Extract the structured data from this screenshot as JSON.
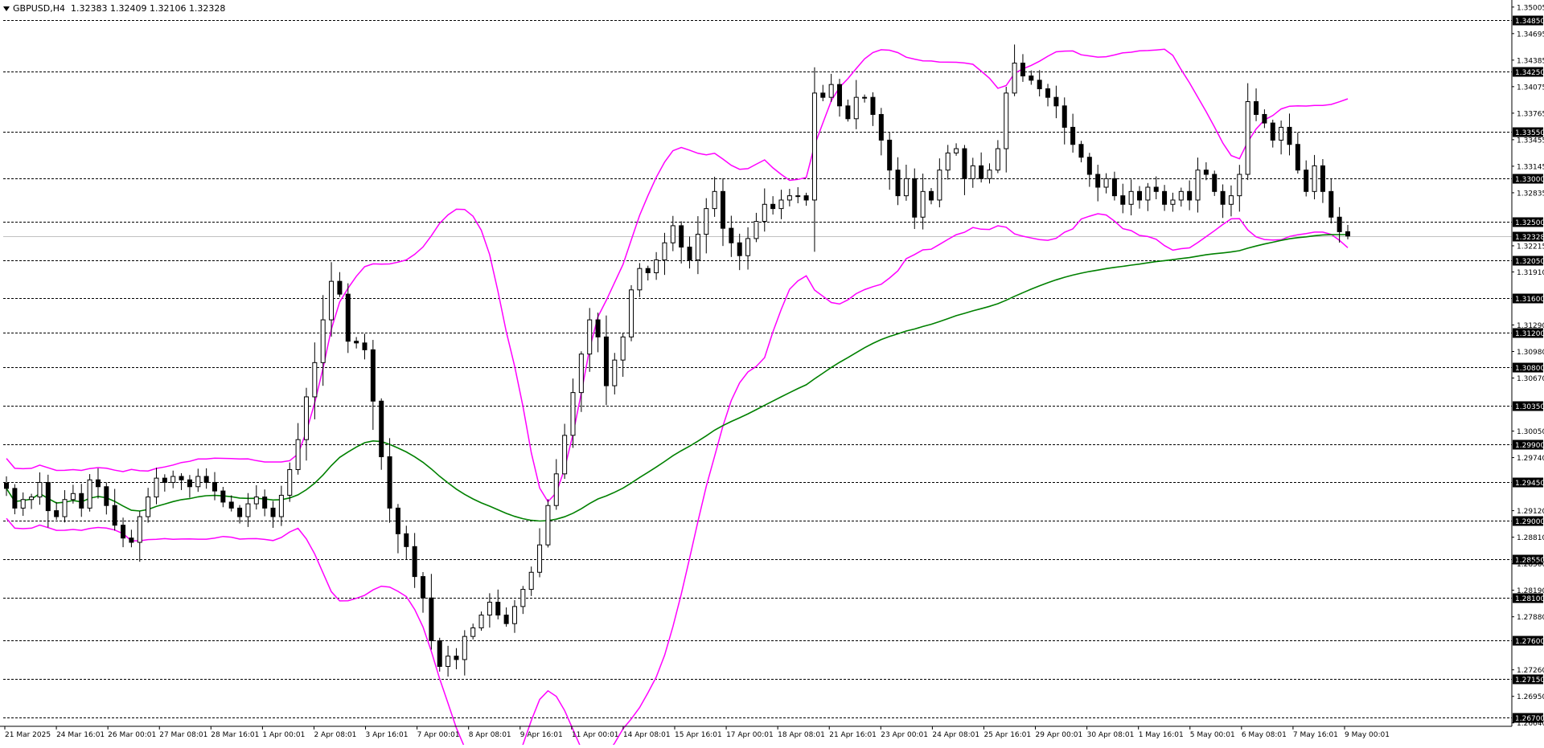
{
  "header": {
    "symbol": "GBPUSD,H4",
    "ohlc": "1.32383 1.32409 1.32106 1.32328"
  },
  "colors": {
    "background": "#ffffff",
    "candle": "#000000",
    "bollinger": "#ff00ff",
    "moving_average": "#008000",
    "grid": "#000000"
  },
  "chart_data": {
    "type": "candlestick",
    "symbol": "GBPUSD",
    "timeframe": "H4",
    "ylim": [
      1.266,
      1.3505
    ],
    "grid": "horizontal dashed at level lines",
    "price_axis_ticks": [
      "1.35005",
      "1.34695",
      "1.34385",
      "1.34075",
      "1.33765",
      "1.33455",
      "1.33145",
      "1.32835",
      "1.32215",
      "1.31910",
      "1.31290",
      "1.30980",
      "1.30670",
      "1.30050",
      "1.29740",
      "1.29120",
      "1.28810",
      "1.28500",
      "1.28190",
      "1.27880",
      "1.27260",
      "1.26950",
      "1.26640"
    ],
    "level_lines": [
      "1.34850",
      "1.34250",
      "1.33550",
      "1.33000",
      "1.32500",
      "1.32050",
      "1.31600",
      "1.31200",
      "1.30800",
      "1.30350",
      "1.29900",
      "1.29450",
      "1.29000",
      "1.28550",
      "1.28100",
      "1.27600",
      "1.27150",
      "1.26700"
    ],
    "current_price": "1.32328",
    "time_labels": [
      "21 Mar 2025",
      "24 Mar 16:01",
      "26 Mar 00:01",
      "27 Mar 08:01",
      "28 Mar 16:01",
      "1 Apr 00:01",
      "2 Apr 08:01",
      "3 Apr 16:01",
      "7 Apr 00:01",
      "8 Apr 08:01",
      "9 Apr 16:01",
      "11 Apr 00:01",
      "14 Apr 08:01",
      "15 Apr 16:01",
      "17 Apr 00:01",
      "18 Apr 08:01",
      "21 Apr 16:01",
      "23 Apr 00:01",
      "24 Apr 08:01",
      "25 Apr 16:01",
      "29 Apr 00:01",
      "30 Apr 08:01",
      "1 May 16:01",
      "5 May 00:01",
      "6 May 08:01",
      "7 May 16:01",
      "9 May 00:01"
    ],
    "close_path": [
      1.2938,
      1.2915,
      1.2925,
      1.2928,
      1.2945,
      1.2912,
      1.2905,
      1.2925,
      1.2932,
      1.2915,
      1.2948,
      1.294,
      1.2918,
      1.2895,
      1.288,
      1.2875,
      1.2905,
      1.2928,
      1.295,
      1.2945,
      1.2952,
      1.2948,
      1.294,
      1.2952,
      1.2945,
      1.2935,
      1.2922,
      1.2915,
      1.2905,
      1.292,
      1.2928,
      1.2915,
      1.2905,
      1.293,
      1.296,
      1.2995,
      1.3045,
      1.3085,
      1.3135,
      1.318,
      1.3165,
      1.311,
      1.3108,
      1.31,
      1.304,
      1.2975,
      1.2915,
      1.2885,
      1.287,
      1.2835,
      1.281,
      1.276,
      1.273,
      1.2742,
      1.2738,
      1.2765,
      1.2775,
      1.279,
      1.2805,
      1.279,
      1.278,
      1.28,
      1.282,
      1.284,
      1.2872,
      1.2918,
      1.2955,
      1.3,
      1.305,
      1.3095,
      1.3135,
      1.3115,
      1.3058,
      1.3088,
      1.3115,
      1.317,
      1.3195,
      1.319,
      1.3205,
      1.3225,
      1.3245,
      1.322,
      1.3205,
      1.3235,
      1.3265,
      1.3285,
      1.3242,
      1.3225,
      1.321,
      1.323,
      1.325,
      1.327,
      1.3265,
      1.3275,
      1.328,
      1.328,
      1.3275,
      1.34,
      1.3395,
      1.341,
      1.3385,
      1.337,
      1.3395,
      1.3395,
      1.3375,
      1.3345,
      1.331,
      1.328,
      1.33,
      1.3255,
      1.3285,
      1.3275,
      1.331,
      1.333,
      1.3335,
      1.33,
      1.3315,
      1.33,
      1.331,
      1.3335,
      1.34,
      1.3435,
      1.342,
      1.3415,
      1.3405,
      1.3395,
      1.3385,
      1.336,
      1.334,
      1.3325,
      1.3305,
      1.329,
      1.33,
      1.328,
      1.327,
      1.3285,
      1.3275,
      1.329,
      1.3285,
      1.327,
      1.3275,
      1.3285,
      1.3275,
      1.331,
      1.3305,
      1.3285,
      1.327,
      1.328,
      1.3305,
      1.339,
      1.3375,
      1.3365,
      1.3345,
      1.336,
      1.334,
      1.331,
      1.3285,
      1.3315,
      1.3285,
      1.3255,
      1.3238,
      1.3233
    ]
  }
}
